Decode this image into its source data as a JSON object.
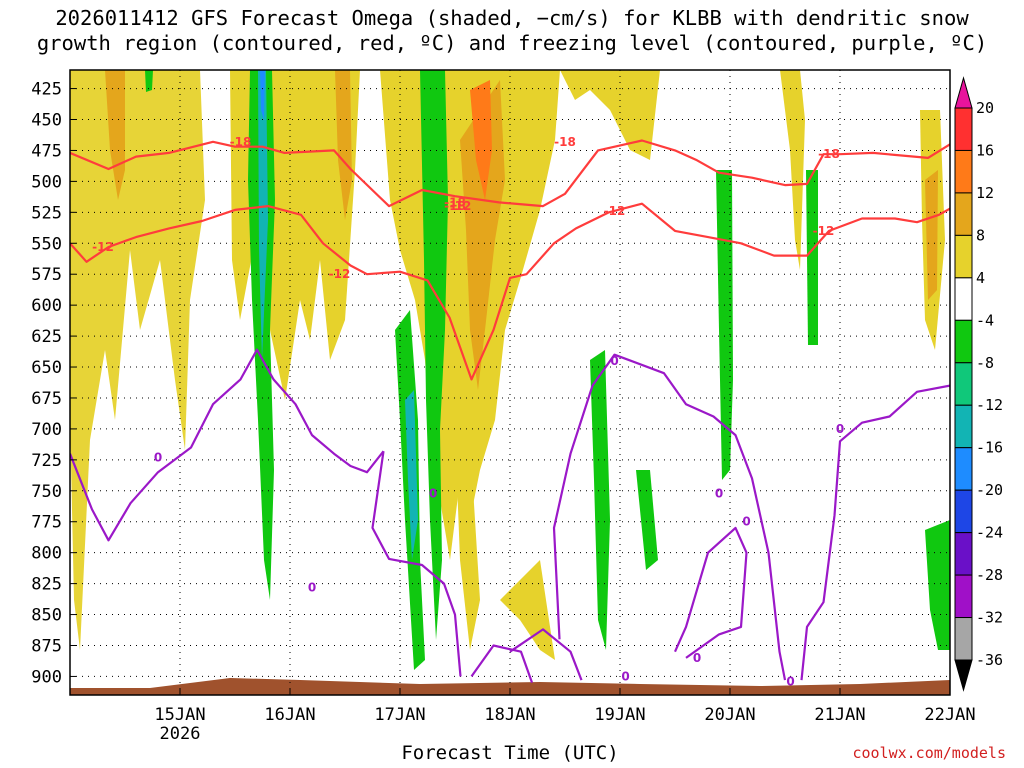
{
  "chart_data": {
    "type": "heatmap",
    "title_line1": "2026011412 GFS Forecast Omega (shaded, −cm/s) for KLBB with dendritic snow",
    "title_line2": "growth region (contoured, red, ºC) and freezing level (contoured, purple, ºC)",
    "xlabel": "Forecast Time (UTC)",
    "ylabel": "",
    "credit": "coolwx.com/models",
    "x_ticks": [
      {
        "t": 1.0,
        "label": "15JAN",
        "sub": "2026"
      },
      {
        "t": 2.0,
        "label": "16JAN"
      },
      {
        "t": 3.0,
        "label": "17JAN"
      },
      {
        "t": 4.0,
        "label": "18JAN"
      },
      {
        "t": 5.0,
        "label": "19JAN"
      },
      {
        "t": 6.0,
        "label": "20JAN"
      },
      {
        "t": 7.0,
        "label": "21JAN"
      },
      {
        "t": 8.0,
        "label": "22JAN"
      }
    ],
    "xlim": [
      0.0,
      8.0
    ],
    "y_ticks": [
      425,
      450,
      475,
      500,
      525,
      550,
      575,
      600,
      625,
      650,
      675,
      700,
      725,
      750,
      775,
      800,
      825,
      850,
      875,
      900
    ],
    "ylim": [
      410,
      915
    ],
    "colorbar": {
      "levels": [
        20,
        16,
        12,
        8,
        4,
        -4,
        -8,
        -12,
        -16,
        -20,
        -24,
        -28,
        -32,
        -36
      ],
      "colors": [
        "#ffffff",
        "#e8149c",
        "#ff3030",
        "#ff7a18",
        "#e4a61c",
        "#e6d22c",
        "#ffffff",
        "#10c810",
        "#10c87a",
        "#12b4b4",
        "#1e8cff",
        "#1e46e6",
        "#6a10c8",
        "#a010c8",
        "#a6a6a6",
        "#000000"
      ]
    },
    "red_contour_labels": [
      "-18",
      "-18",
      "-18",
      "-18",
      "-18",
      "-12",
      "-12",
      "-12",
      "-12",
      "-12"
    ],
    "purple_contour_labels": [
      "0",
      "0",
      "0",
      "0",
      "0",
      "0",
      "0",
      "0",
      "0",
      "0"
    ],
    "series": [
      {
        "name": "dendritic_top_minus18C",
        "color": "#ff3c3c",
        "points": [
          [
            0,
            477
          ],
          [
            0.35,
            490
          ],
          [
            0.6,
            480
          ],
          [
            0.9,
            477
          ],
          [
            1.3,
            468
          ],
          [
            1.5,
            472
          ],
          [
            1.75,
            472
          ],
          [
            1.95,
            477
          ],
          [
            2.4,
            475
          ],
          [
            2.55,
            490
          ],
          [
            2.9,
            520
          ],
          [
            3.2,
            507
          ],
          [
            3.5,
            512
          ],
          [
            3.9,
            517
          ],
          [
            4.3,
            520
          ],
          [
            4.5,
            510
          ],
          [
            4.8,
            475
          ],
          [
            5.2,
            467
          ],
          [
            5.5,
            475
          ],
          [
            5.7,
            483
          ],
          [
            5.9,
            493
          ],
          [
            6.2,
            497
          ],
          [
            6.5,
            503
          ],
          [
            6.7,
            502
          ],
          [
            6.85,
            478
          ],
          [
            7.0,
            478
          ],
          [
            7.3,
            477
          ],
          [
            7.8,
            481
          ],
          [
            8.0,
            470
          ]
        ]
      },
      {
        "name": "dendritic_bottom_minus12C",
        "color": "#ff3c3c",
        "points": [
          [
            0,
            550
          ],
          [
            0.15,
            565
          ],
          [
            0.35,
            553
          ],
          [
            0.6,
            545
          ],
          [
            0.9,
            538
          ],
          [
            1.2,
            532
          ],
          [
            1.5,
            523
          ],
          [
            1.8,
            520
          ],
          [
            2.1,
            527
          ],
          [
            2.3,
            550
          ],
          [
            2.55,
            568
          ],
          [
            2.7,
            575
          ],
          [
            3.0,
            573
          ],
          [
            3.25,
            580
          ],
          [
            3.45,
            610
          ],
          [
            3.65,
            660
          ],
          [
            3.85,
            620
          ],
          [
            4.0,
            578
          ],
          [
            4.15,
            575
          ],
          [
            4.4,
            550
          ],
          [
            4.6,
            538
          ],
          [
            4.9,
            525
          ],
          [
            5.2,
            518
          ],
          [
            5.5,
            540
          ],
          [
            5.8,
            545
          ],
          [
            6.1,
            550
          ],
          [
            6.4,
            560
          ],
          [
            6.7,
            560
          ],
          [
            6.9,
            540
          ],
          [
            7.2,
            530
          ],
          [
            7.5,
            530
          ],
          [
            7.7,
            533
          ],
          [
            7.9,
            527
          ],
          [
            8.0,
            522
          ]
        ]
      },
      {
        "name": "freezing_level_0C",
        "color": "#9b18c8",
        "points": [
          [
            0,
            720
          ],
          [
            0.2,
            765
          ],
          [
            0.35,
            790
          ],
          [
            0.55,
            760
          ],
          [
            0.8,
            735
          ],
          [
            1.1,
            715
          ],
          [
            1.3,
            680
          ],
          [
            1.55,
            660
          ],
          [
            1.7,
            636
          ],
          [
            1.85,
            660
          ],
          [
            2.05,
            680
          ],
          [
            2.2,
            705
          ],
          [
            2.4,
            720
          ],
          [
            2.55,
            730
          ],
          [
            2.7,
            735
          ],
          [
            2.85,
            718
          ]
        ]
      }
    ]
  }
}
